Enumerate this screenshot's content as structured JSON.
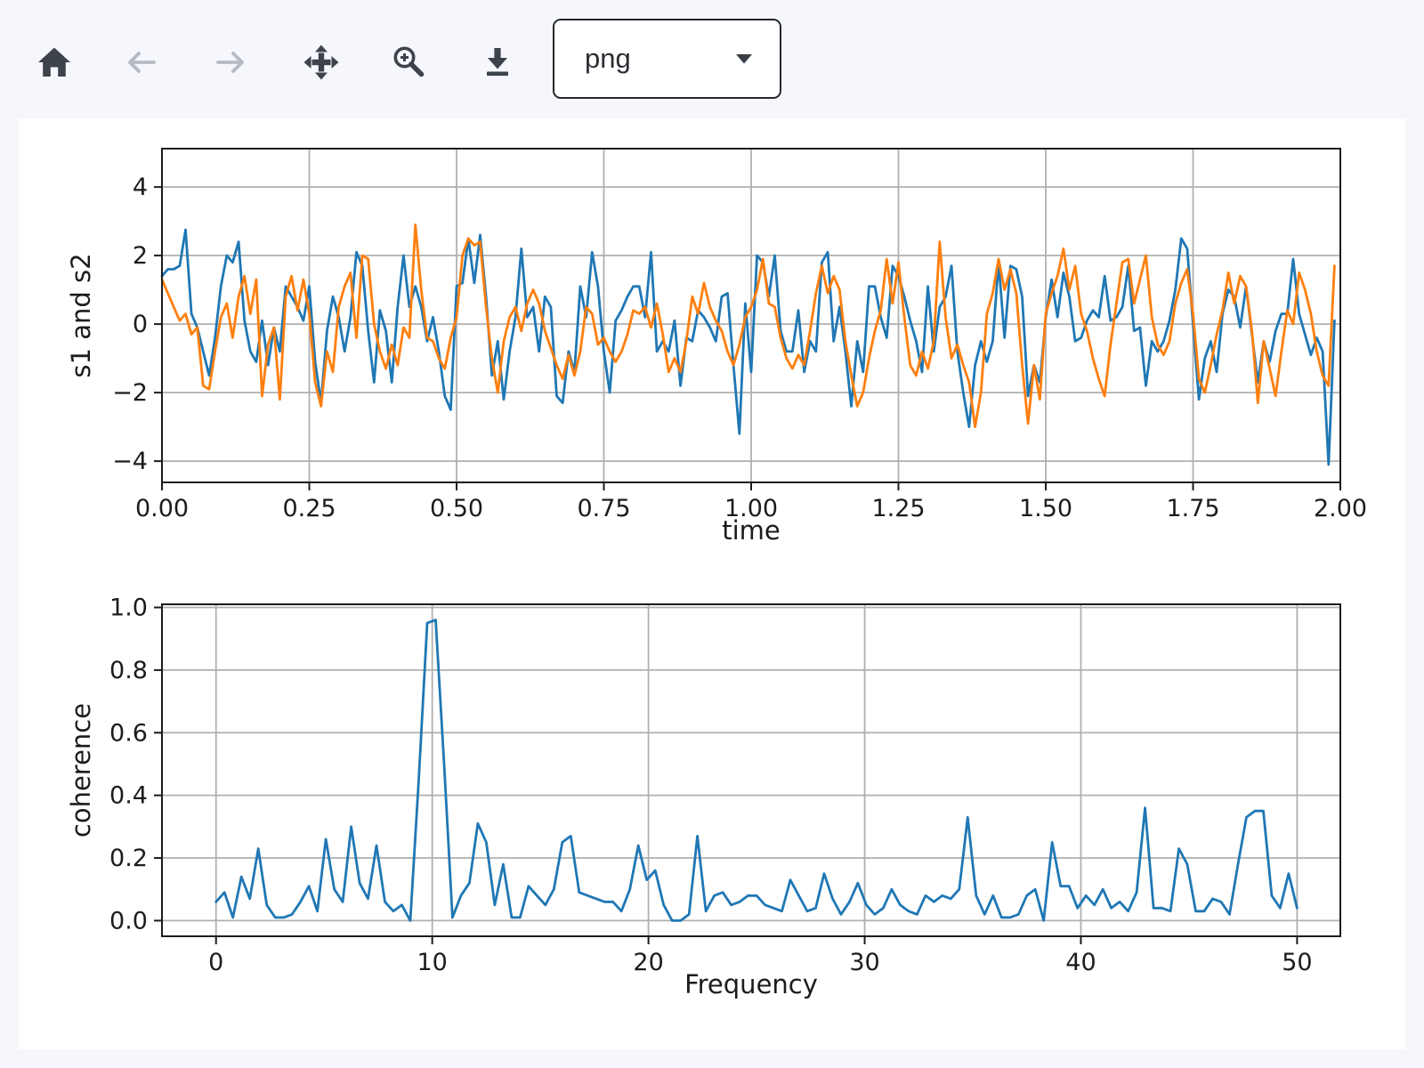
{
  "page": {
    "background_color": "#f5f7fc",
    "canvas_color": "#ffffff"
  },
  "toolbar": {
    "icon_color": "#3d434a",
    "disabled_icon_color": "#b6bbc3",
    "buttons": [
      {
        "name": "home",
        "icon": "home-icon",
        "enabled": true
      },
      {
        "name": "back",
        "icon": "arrow-left-icon",
        "enabled": false
      },
      {
        "name": "forward",
        "icon": "arrow-right-icon",
        "enabled": false
      },
      {
        "name": "pan",
        "icon": "move-icon",
        "enabled": true
      },
      {
        "name": "zoom-to-rect",
        "icon": "zoom-in-icon",
        "enabled": true
      },
      {
        "name": "download",
        "icon": "download-icon",
        "enabled": true
      }
    ],
    "format_select": {
      "value": "png"
    }
  },
  "chart_data": [
    {
      "type": "line",
      "title": "",
      "xlabel": "time",
      "ylabel": "s1 and s2",
      "xlim": [
        0,
        2
      ],
      "ylim": [
        -4.62,
        5.12
      ],
      "grid": true,
      "legend": "none",
      "xticks": {
        "values": [
          0,
          0.25,
          0.5,
          0.75,
          1.0,
          1.25,
          1.5,
          1.75,
          2.0
        ],
        "labels": [
          "0.00",
          "0.25",
          "0.50",
          "0.75",
          "1.00",
          "1.25",
          "1.50",
          "1.75",
          "2.00"
        ]
      },
      "yticks": {
        "values": [
          -4,
          -2,
          0,
          2,
          4
        ],
        "labels": [
          "−4",
          "−2",
          "0",
          "2",
          "4"
        ]
      },
      "series": [
        {
          "name": "s1",
          "color": "#1f77b4",
          "x_start": 0,
          "x_step": 0.01,
          "values": [
            1.4,
            1.6,
            1.6,
            1.7,
            2.75,
            0.3,
            -0.1,
            -0.8,
            -1.5,
            -0.4,
            1.1,
            2.0,
            1.8,
            2.4,
            0.1,
            -0.8,
            -1.1,
            0.1,
            -1.2,
            -0.1,
            -0.8,
            1.1,
            0.8,
            0.5,
            0.1,
            1.1,
            -1.1,
            -2.3,
            -0.2,
            0.8,
            0.2,
            -0.8,
            0.2,
            2.1,
            1.7,
            -0.2,
            -1.7,
            0.4,
            -0.2,
            -1.7,
            0.5,
            2.0,
            0.5,
            1.1,
            0.5,
            -0.5,
            0.2,
            -0.8,
            -2.1,
            -2.5,
            1.1,
            1.2,
            2.5,
            1.2,
            2.6,
            0.8,
            -1.5,
            -0.5,
            -2.2,
            -0.8,
            0.2,
            2.2,
            0.2,
            0.5,
            -0.8,
            0.8,
            0.5,
            -2.1,
            -2.3,
            -0.8,
            -1.4,
            1.1,
            0.2,
            2.1,
            1.1,
            -0.8,
            -2.0,
            0.1,
            0.4,
            0.8,
            1.1,
            1.1,
            0.2,
            2.1,
            -0.8,
            -0.5,
            -0.8,
            0.1,
            -1.8,
            -0.4,
            -0.5,
            0.4,
            0.2,
            -0.1,
            -0.5,
            0.8,
            0.9,
            -1.2,
            -3.2,
            0.6,
            -1.4,
            2.0,
            1.8,
            0.8,
            2.0,
            -0.2,
            -0.8,
            -0.8,
            0.4,
            -1.4,
            -0.5,
            -0.8,
            1.8,
            2.1,
            -0.5,
            0.5,
            -0.8,
            -2.4,
            -0.5,
            -1.4,
            1.1,
            1.1,
            0.2,
            -0.4,
            1.7,
            1.4,
            0.8,
            0.1,
            -0.5,
            -1.4,
            1.1,
            -0.8,
            0.5,
            0.8,
            1.7,
            -0.8,
            -2.0,
            -3.0,
            -1.2,
            -0.5,
            -1.1,
            -0.5,
            1.8,
            -0.4,
            1.7,
            1.6,
            0.8,
            -2.1,
            -1.2,
            -1.7,
            0.2,
            1.3,
            0.2,
            1.5,
            0.8,
            -0.5,
            -0.4,
            0.1,
            0.4,
            0.2,
            1.4,
            0.1,
            0.2,
            0.5,
            1.7,
            -0.2,
            -0.1,
            -1.8,
            -0.5,
            -0.8,
            -0.5,
            0.1,
            1.0,
            2.5,
            2.2,
            0.0,
            -2.2,
            -1.0,
            -0.5,
            -1.4,
            0.3,
            1.0,
            0.8,
            -0.1,
            1.1,
            -0.3,
            -1.7,
            -0.5,
            -1.1,
            -0.2,
            0.3,
            0.3,
            1.9,
            0.3,
            -0.3,
            -0.9,
            -0.4,
            -0.8,
            -4.1,
            0.1
          ]
        },
        {
          "name": "s2",
          "color": "#ff7f0e",
          "x_start": 0,
          "x_step": 0.01,
          "values": [
            1.3,
            0.9,
            0.5,
            0.1,
            0.3,
            -0.3,
            -0.1,
            -1.8,
            -1.9,
            -0.8,
            0.2,
            0.6,
            -0.4,
            0.8,
            1.4,
            0.3,
            1.3,
            -2.1,
            -0.6,
            -0.1,
            -2.2,
            0.8,
            1.4,
            0.4,
            1.3,
            0.3,
            -1.7,
            -2.4,
            -0.8,
            -1.4,
            0.5,
            1.1,
            1.5,
            -0.4,
            2.0,
            1.9,
            0.0,
            -0.8,
            -1.3,
            -0.6,
            -1.2,
            -0.1,
            -0.4,
            2.9,
            1.0,
            -0.4,
            -0.5,
            -1.0,
            -1.3,
            -0.4,
            0.2,
            2.0,
            2.5,
            2.3,
            2.4,
            0.5,
            -1.0,
            -2.0,
            -0.5,
            0.2,
            0.5,
            -0.2,
            0.6,
            1.0,
            0.6,
            -0.2,
            -0.7,
            -1.2,
            -1.6,
            -0.9,
            -1.5,
            -0.8,
            0.5,
            0.3,
            -0.6,
            -0.4,
            -0.8,
            -1.1,
            -0.8,
            -0.3,
            0.4,
            0.3,
            0.5,
            -0.1,
            0.6,
            -0.3,
            -1.4,
            -1.0,
            -1.4,
            -0.5,
            0.8,
            0.3,
            1.2,
            0.5,
            0.1,
            -0.2,
            -0.8,
            -1.2,
            -0.6,
            0.2,
            0.5,
            1.0,
            1.9,
            0.6,
            0.5,
            -0.4,
            -1.0,
            -1.3,
            -0.9,
            -1.2,
            -0.2,
            0.9,
            1.7,
            0.9,
            1.4,
            1.0,
            -0.5,
            -1.5,
            -2.4,
            -2.0,
            -1.0,
            -0.2,
            0.4,
            1.9,
            0.6,
            1.8,
            0.2,
            -1.2,
            -1.5,
            -0.8,
            -1.3,
            -0.5,
            2.4,
            0.2,
            -1.0,
            -0.6,
            -1.2,
            -1.7,
            -3.0,
            -2.0,
            0.3,
            0.9,
            1.9,
            1.0,
            1.6,
            0.9,
            -1.2,
            -2.9,
            -1.2,
            -2.2,
            0.3,
            0.9,
            1.4,
            2.2,
            1.0,
            1.7,
            0.3,
            -0.2,
            -1.0,
            -1.6,
            -2.1,
            -0.6,
            0.6,
            1.8,
            1.9,
            0.6,
            1.3,
            2.0,
            0.2,
            -0.6,
            -0.9,
            -0.5,
            0.6,
            1.2,
            1.6,
            0.3,
            -1.6,
            -2.0,
            -1.2,
            -0.3,
            0.4,
            1.5,
            0.6,
            1.4,
            1.1,
            -0.2,
            -2.3,
            -0.5,
            -1.3,
            -2.1,
            -0.8,
            0.4,
            0.0,
            1.5,
            1.0,
            0.3,
            -0.8,
            -1.5,
            -1.8,
            1.7
          ]
        }
      ]
    },
    {
      "type": "line",
      "title": "",
      "xlabel": "Frequency",
      "ylabel": "coherence",
      "xlim": [
        -2.5,
        52
      ],
      "ylim": [
        -0.05,
        1.01
      ],
      "grid": true,
      "legend": "none",
      "xticks": {
        "values": [
          0,
          10,
          20,
          30,
          40,
          50
        ],
        "labels": [
          "0",
          "10",
          "20",
          "30",
          "40",
          "50"
        ]
      },
      "yticks": {
        "values": [
          0,
          0.2,
          0.4,
          0.6,
          0.8,
          1.0
        ],
        "labels": [
          "0.0",
          "0.2",
          "0.4",
          "0.6",
          "0.8",
          "1.0"
        ]
      },
      "series": [
        {
          "name": "coherence",
          "color": "#1f77b4",
          "x_start": 0,
          "x_step": 0.390625,
          "values": [
            0.06,
            0.09,
            0.01,
            0.14,
            0.07,
            0.23,
            0.05,
            0.01,
            0.01,
            0.02,
            0.06,
            0.11,
            0.03,
            0.26,
            0.1,
            0.06,
            0.3,
            0.12,
            0.07,
            0.24,
            0.06,
            0.03,
            0.05,
            0.0,
            0.45,
            0.95,
            0.96,
            0.5,
            0.01,
            0.08,
            0.12,
            0.31,
            0.25,
            0.05,
            0.18,
            0.01,
            0.01,
            0.11,
            0.08,
            0.05,
            0.1,
            0.25,
            0.27,
            0.09,
            0.08,
            0.07,
            0.06,
            0.06,
            0.03,
            0.1,
            0.24,
            0.13,
            0.16,
            0.05,
            0.0,
            0.0,
            0.02,
            0.27,
            0.03,
            0.08,
            0.09,
            0.05,
            0.06,
            0.08,
            0.08,
            0.05,
            0.04,
            0.03,
            0.13,
            0.08,
            0.03,
            0.04,
            0.15,
            0.07,
            0.02,
            0.06,
            0.12,
            0.05,
            0.02,
            0.04,
            0.1,
            0.05,
            0.03,
            0.02,
            0.08,
            0.06,
            0.08,
            0.07,
            0.1,
            0.33,
            0.08,
            0.02,
            0.08,
            0.01,
            0.01,
            0.02,
            0.08,
            0.1,
            0.0,
            0.25,
            0.11,
            0.11,
            0.04,
            0.08,
            0.05,
            0.1,
            0.04,
            0.06,
            0.03,
            0.09,
            0.36,
            0.04,
            0.04,
            0.03,
            0.23,
            0.18,
            0.03,
            0.03,
            0.07,
            0.06,
            0.02,
            0.18,
            0.33,
            0.35,
            0.35,
            0.08,
            0.04,
            0.15,
            0.04
          ]
        }
      ]
    }
  ]
}
